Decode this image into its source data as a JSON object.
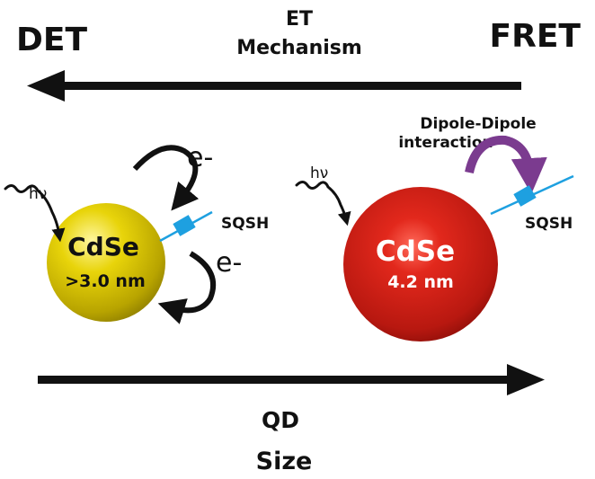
{
  "header": {
    "left_label": "DET",
    "right_label": "FRET",
    "mechanism_line1": "ET",
    "mechanism_line2": "Mechanism"
  },
  "small_qd": {
    "material": "CdSe",
    "size": ">3.0 nm",
    "light": "hν",
    "electron_top": "e-",
    "electron_bottom": "e-",
    "acceptor": "SQSH"
  },
  "large_qd": {
    "material": "CdSe",
    "size": "4.2 nm",
    "light": "hν",
    "interaction_line1": "Dipole-Dipole",
    "interaction_line2": "interaction",
    "acceptor": "SQSH"
  },
  "footer": {
    "axis_line1": "QD",
    "axis_line2": "Size"
  },
  "colors": {
    "small_qd": "#d8c400",
    "large_qd": "#c81e14",
    "acceptor": "#1ea0e0",
    "interaction_arrow": "#7b3b8f",
    "arrows": "#111111"
  }
}
